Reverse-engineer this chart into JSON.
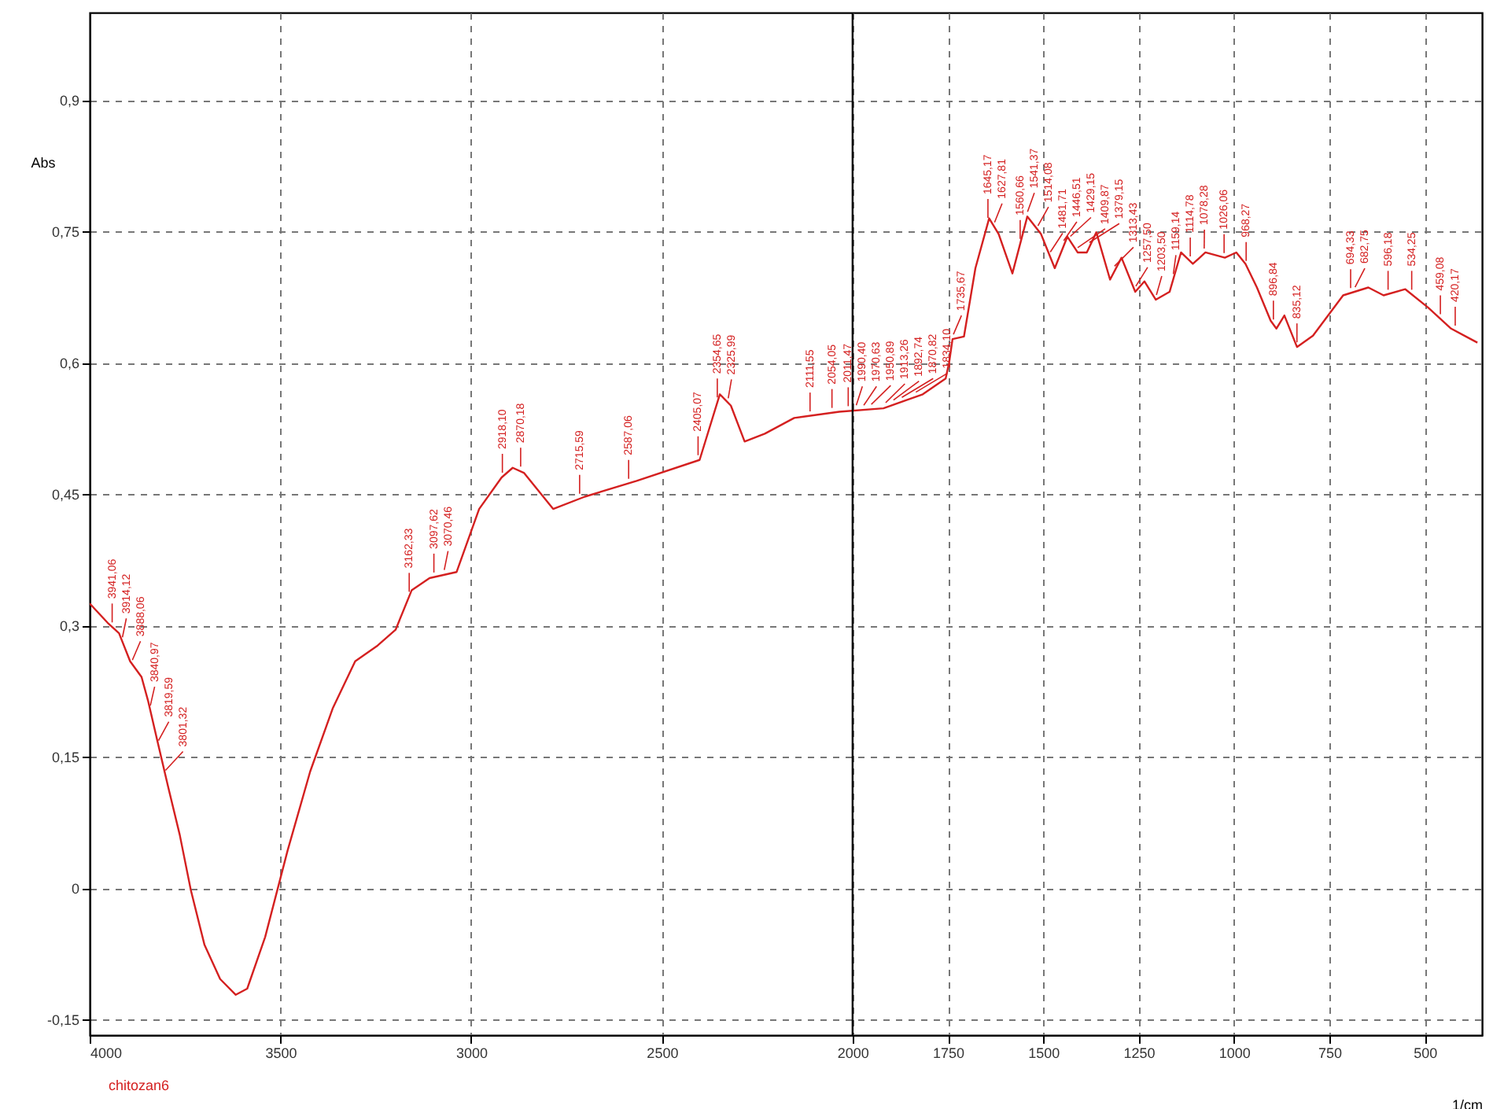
{
  "chart_data": {
    "type": "line",
    "xlabel": "1/cm",
    "ylabel": "Abs",
    "xlim": [
      4000,
      350
    ],
    "ylim": [
      -0.168,
      1.0
    ],
    "xticks": [
      4000,
      3500,
      3000,
      2500,
      2000,
      1750,
      1500,
      1250,
      1000,
      750,
      500
    ],
    "yticks": [
      {
        "value": -0.15,
        "label": "-0,15"
      },
      {
        "value": 0,
        "label": "0"
      },
      {
        "value": 0.15,
        "label": "0,15"
      },
      {
        "value": 0.3,
        "label": "0,3"
      },
      {
        "value": 0.45,
        "label": "0,45"
      },
      {
        "value": 0.6,
        "label": "0,6"
      },
      {
        "value": 0.75,
        "label": "0,75"
      },
      {
        "value": 0.9,
        "label": "0,9"
      }
    ],
    "grid": true,
    "ref_lines": [
      {
        "axis": "x",
        "value": 2000,
        "color": "#000000"
      }
    ],
    "series": [
      {
        "color": "#d42020",
        "x": [
          4000,
          3953,
          3923,
          3894,
          3864,
          3847,
          3823,
          3794,
          3764,
          3735,
          3699,
          3658,
          3617,
          3587,
          3540,
          3481,
          3422,
          3363,
          3304,
          3245,
          3198,
          3156,
          3109,
          3038,
          2979,
          2920,
          2891,
          2861,
          2785,
          2702,
          2566,
          2401,
          2348,
          2319,
          2283,
          2230,
          2153,
          2035,
          1919,
          1816,
          1756,
          1747,
          1738,
          1708,
          1678,
          1642,
          1617,
          1581,
          1542,
          1506,
          1470,
          1437,
          1410,
          1386,
          1361,
          1325,
          1295,
          1259,
          1235,
          1205,
          1169,
          1139,
          1108,
          1075,
          1024,
          994,
          970,
          940,
          904,
          889,
          868,
          835,
          793,
          714,
          648,
          608,
          551,
          491,
          431,
          392,
          362
        ],
        "values": [
          0.325,
          0.303,
          0.291,
          0.259,
          0.241,
          0.214,
          0.169,
          0.115,
          0.061,
          -0.002,
          -0.065,
          -0.104,
          -0.122,
          -0.115,
          -0.056,
          0.043,
          0.133,
          0.205,
          0.259,
          0.277,
          0.295,
          0.34,
          0.354,
          0.361,
          0.433,
          0.469,
          0.48,
          0.474,
          0.433,
          0.447,
          0.465,
          0.489,
          0.564,
          0.551,
          0.51,
          0.519,
          0.537,
          0.544,
          0.548,
          0.564,
          0.582,
          0.6,
          0.627,
          0.63,
          0.708,
          0.765,
          0.747,
          0.702,
          0.767,
          0.747,
          0.708,
          0.744,
          0.726,
          0.726,
          0.749,
          0.695,
          0.72,
          0.681,
          0.693,
          0.672,
          0.681,
          0.726,
          0.713,
          0.726,
          0.72,
          0.726,
          0.713,
          0.686,
          0.648,
          0.639,
          0.654,
          0.618,
          0.631,
          0.677,
          0.686,
          0.677,
          0.684,
          0.663,
          0.639,
          0.63,
          0.623
        ]
      }
    ],
    "annotations": [
      "chitozan6",
      {
        "text": "3941,06",
        "x": 3941.06,
        "y": 0.298
      },
      {
        "text": "3914,12",
        "x": 3914.12,
        "y": 0.281
      },
      {
        "text": "3888,06",
        "x": 3888.06,
        "y": 0.255
      },
      {
        "text": "3840,97",
        "x": 3840.97,
        "y": 0.203
      },
      {
        "text": "3819,59",
        "x": 3819.59,
        "y": 0.163
      },
      {
        "text": "3801,32",
        "x": 3801.32,
        "y": 0.129
      },
      {
        "text": "3162,33",
        "x": 3162.33,
        "y": 0.333
      },
      {
        "text": "3097,62",
        "x": 3097.62,
        "y": 0.355
      },
      {
        "text": "3070,46",
        "x": 3070.46,
        "y": 0.358
      },
      {
        "text": "2918,10",
        "x": 2918.1,
        "y": 0.469
      },
      {
        "text": "2870,18",
        "x": 2870.18,
        "y": 0.476
      },
      {
        "text": "2715,59",
        "x": 2715.59,
        "y": 0.445
      },
      {
        "text": "2587,06",
        "x": 2587.06,
        "y": 0.462
      },
      {
        "text": "2405,07",
        "x": 2405.07,
        "y": 0.489
      },
      {
        "text": "2354,65",
        "x": 2354.65,
        "y": 0.555
      },
      {
        "text": "2325,99",
        "x": 2325.99,
        "y": 0.554
      },
      {
        "text": "2111,55",
        "x": 2111.55,
        "y": 0.539
      },
      {
        "text": "2054,05",
        "x": 2054.05,
        "y": 0.543
      },
      {
        "text": "2011,47",
        "x": 2011.47,
        "y": 0.545
      },
      {
        "text": "1990,40",
        "x": 1990.4,
        "y": 0.546
      },
      {
        "text": "1970,63",
        "x": 1970.63,
        "y": 0.546
      },
      {
        "text": "1950,89",
        "x": 1950.89,
        "y": 0.547
      },
      {
        "text": "1913,26",
        "x": 1913.26,
        "y": 0.549
      },
      {
        "text": "1892,74",
        "x": 1892.74,
        "y": 0.552
      },
      {
        "text": "1870,82",
        "x": 1870.82,
        "y": 0.555
      },
      {
        "text": "1834,10",
        "x": 1834.1,
        "y": 0.561
      },
      {
        "text": "1735,67",
        "x": 1735.67,
        "y": 0.627
      },
      {
        "text": "1645,17",
        "x": 1645.17,
        "y": 0.76
      },
      {
        "text": "1627,81",
        "x": 1627.81,
        "y": 0.755
      },
      {
        "text": "1560,66",
        "x": 1560.66,
        "y": 0.736
      },
      {
        "text": "1541,37",
        "x": 1541.37,
        "y": 0.767
      },
      {
        "text": "1514,08",
        "x": 1514.08,
        "y": 0.751
      },
      {
        "text": "1481,71",
        "x": 1481.71,
        "y": 0.721
      },
      {
        "text": "1446,51",
        "x": 1446.51,
        "y": 0.734
      },
      {
        "text": "1429,15",
        "x": 1429.15,
        "y": 0.739
      },
      {
        "text": "1409,87",
        "x": 1409.87,
        "y": 0.726
      },
      {
        "text": "1379,15",
        "x": 1379.15,
        "y": 0.732
      },
      {
        "text": "1313,43",
        "x": 1313.43,
        "y": 0.705
      },
      {
        "text": "1257,50",
        "x": 1257.5,
        "y": 0.682
      },
      {
        "text": "1203,50",
        "x": 1203.5,
        "y": 0.672
      },
      {
        "text": "1159,14",
        "x": 1159.14,
        "y": 0.696
      },
      {
        "text": "1114,78",
        "x": 1114.78,
        "y": 0.716
      },
      {
        "text": "1078,28",
        "x": 1078.28,
        "y": 0.725
      },
      {
        "text": "1026,06",
        "x": 1026.06,
        "y": 0.72
      },
      {
        "text": "968,27",
        "x": 968.27,
        "y": 0.711
      },
      {
        "text": "896,84",
        "x": 896.84,
        "y": 0.644
      },
      {
        "text": "835,12",
        "x": 835.12,
        "y": 0.618
      },
      {
        "text": "694,33",
        "x": 694.33,
        "y": 0.68
      },
      {
        "text": "682,75",
        "x": 682.75,
        "y": 0.681
      },
      {
        "text": "596,18",
        "x": 596.18,
        "y": 0.678
      },
      {
        "text": "534,25",
        "x": 534.25,
        "y": 0.678
      },
      {
        "text": "459,08",
        "x": 459.08,
        "y": 0.65
      },
      {
        "text": "420,17",
        "x": 420.17,
        "y": 0.637
      }
    ]
  }
}
